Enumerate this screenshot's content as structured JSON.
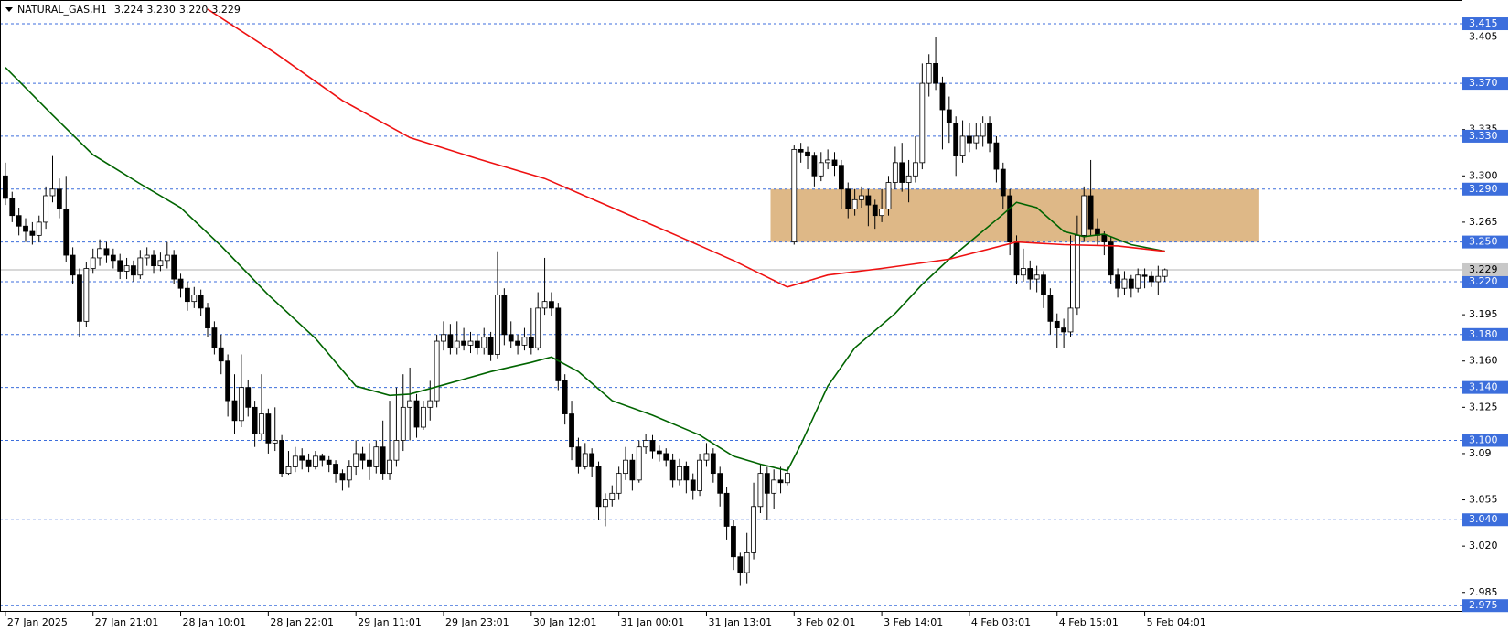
{
  "chart_data": {
    "type": "candlestick",
    "symbol": "NATURAL_GAS,H1",
    "header_values": [
      3.224,
      {
        "value": 3.23,
        "label": "3.230"
      },
      {
        "value": 3.22,
        "label": "3.220"
      },
      3.229
    ],
    "current_price": 3.229,
    "up_color": "#ffffff",
    "down_color": "#000000",
    "wick_color": "#000000",
    "open": [
      3.3,
      3.283,
      3.27,
      3.262,
      3.258,
      3.255,
      3.265,
      3.285,
      3.29,
      3.275,
      3.24,
      3.225,
      3.19,
      3.23,
      3.238,
      3.245,
      3.24,
      3.236,
      3.228,
      3.232,
      3.225,
      3.238,
      3.24,
      3.232,
      3.236,
      3.24,
      3.222,
      3.215,
      3.205,
      3.21,
      3.2,
      3.185,
      3.17,
      3.16,
      3.13,
      3.115,
      3.14,
      3.125,
      3.105,
      3.12,
      3.098,
      3.1,
      3.075,
      3.08,
      3.088,
      3.085,
      3.08,
      3.088,
      3.085,
      3.082,
      3.075,
      3.07,
      3.08,
      3.09,
      3.085,
      3.08,
      3.095,
      3.075,
      3.085,
      3.1,
      3.125,
      3.13,
      3.11,
      3.125,
      3.13,
      3.175,
      3.18,
      3.17,
      3.175,
      3.172,
      3.175,
      3.17,
      3.178,
      3.165,
      3.21,
      3.18,
      3.175,
      3.172,
      3.178,
      3.17,
      3.2,
      3.205,
      3.2,
      3.145,
      3.12,
      3.095,
      3.08,
      3.09,
      3.08,
      3.05,
      3.055,
      3.06,
      3.075,
      3.085,
      3.07,
      3.095,
      3.1,
      3.092,
      3.09,
      3.085,
      3.07,
      3.08,
      3.07,
      3.062,
      3.085,
      3.09,
      3.075,
      3.06,
      3.035,
      3.012,
      3.0,
      3.015,
      3.05,
      3.075,
      3.06,
      3.07,
      3.068,
      3.25,
      3.32,
      3.318,
      3.315,
      3.3,
      3.31,
      3.312,
      3.308,
      3.29,
      3.275,
      3.282,
      3.285,
      3.278,
      3.27,
      3.275,
      3.295,
      3.31,
      3.295,
      3.3,
      3.31,
      3.37,
      3.385,
      3.37,
      3.35,
      3.34,
      3.315,
      3.33,
      3.325,
      3.33,
      3.34,
      3.325,
      3.305,
      3.285,
      3.25,
      3.225,
      3.23,
      3.222,
      3.225,
      3.21,
      3.19,
      3.185,
      3.182,
      3.2,
      3.255,
      3.285,
      3.26,
      3.255,
      3.25,
      3.225,
      3.215,
      3.222,
      3.215,
      3.225,
      3.224,
      3.22,
      3.224
    ],
    "high": [
      3.31,
      3.288,
      3.276,
      3.268,
      3.265,
      3.27,
      3.292,
      3.315,
      3.298,
      3.3,
      3.246,
      3.23,
      3.235,
      3.245,
      3.252,
      3.25,
      3.245,
      3.241,
      3.238,
      3.236,
      3.244,
      3.246,
      3.244,
      3.242,
      3.25,
      3.244,
      3.226,
      3.22,
      3.216,
      3.214,
      3.204,
      3.19,
      3.18,
      3.165,
      3.15,
      3.165,
      3.146,
      3.13,
      3.15,
      3.124,
      3.125,
      3.104,
      3.092,
      3.095,
      3.094,
      3.09,
      3.092,
      3.09,
      3.088,
      3.085,
      3.078,
      3.085,
      3.1,
      3.095,
      3.098,
      3.1,
      3.115,
      3.13,
      3.14,
      3.15,
      3.155,
      3.135,
      3.13,
      3.145,
      3.18,
      3.19,
      3.188,
      3.19,
      3.185,
      3.182,
      3.18,
      3.185,
      3.182,
      3.243,
      3.215,
      3.19,
      3.18,
      3.185,
      3.2,
      3.212,
      3.238,
      3.212,
      3.204,
      3.15,
      3.13,
      3.102,
      3.098,
      3.094,
      3.084,
      3.06,
      3.066,
      3.08,
      3.095,
      3.09,
      3.1,
      3.105,
      3.104,
      3.096,
      3.094,
      3.09,
      3.086,
      3.084,
      3.075,
      3.09,
      3.098,
      3.094,
      3.08,
      3.065,
      3.04,
      3.015,
      3.03,
      3.068,
      3.082,
      3.08,
      3.078,
      3.08,
      3.08,
      3.323,
      3.325,
      3.322,
      3.318,
      3.318,
      3.32,
      3.318,
      3.312,
      3.295,
      3.29,
      3.292,
      3.29,
      3.282,
      3.29,
      3.3,
      3.322,
      3.325,
      3.312,
      3.33,
      3.385,
      3.392,
      3.405,
      3.375,
      3.36,
      3.345,
      3.342,
      3.34,
      3.34,
      3.345,
      3.345,
      3.33,
      3.31,
      3.29,
      3.255,
      3.245,
      3.236,
      3.232,
      3.228,
      3.215,
      3.196,
      3.192,
      3.255,
      3.27,
      3.292,
      3.312,
      3.268,
      3.258,
      3.254,
      3.23,
      3.228,
      3.225,
      3.23,
      3.23,
      3.228,
      3.232,
      3.23
    ],
    "low": [
      3.278,
      3.265,
      3.255,
      3.25,
      3.248,
      3.25,
      3.26,
      3.28,
      3.268,
      3.235,
      3.218,
      3.178,
      3.186,
      3.226,
      3.232,
      3.234,
      3.23,
      3.222,
      3.222,
      3.22,
      3.222,
      3.232,
      3.226,
      3.228,
      3.23,
      3.218,
      3.208,
      3.198,
      3.2,
      3.194,
      3.178,
      3.165,
      3.15,
      3.118,
      3.105,
      3.11,
      3.118,
      3.095,
      3.1,
      3.09,
      3.092,
      3.072,
      3.074,
      3.076,
      3.078,
      3.076,
      3.078,
      3.08,
      3.076,
      3.068,
      3.062,
      3.064,
      3.074,
      3.078,
      3.07,
      3.075,
      3.07,
      3.07,
      3.08,
      3.092,
      3.1,
      3.102,
      3.108,
      3.115,
      3.125,
      3.168,
      3.165,
      3.165,
      3.168,
      3.166,
      3.165,
      3.165,
      3.16,
      3.162,
      3.172,
      3.17,
      3.165,
      3.168,
      3.165,
      3.168,
      3.195,
      3.194,
      3.138,
      3.112,
      3.085,
      3.075,
      3.078,
      3.072,
      3.04,
      3.035,
      3.05,
      3.055,
      3.07,
      3.062,
      3.068,
      3.09,
      3.086,
      3.084,
      3.08,
      3.064,
      3.066,
      3.06,
      3.055,
      3.058,
      3.08,
      3.068,
      3.05,
      3.025,
      3.002,
      2.99,
      2.992,
      3.01,
      3.045,
      3.04,
      3.048,
      3.06,
      3.066,
      3.248,
      3.31,
      3.305,
      3.292,
      3.296,
      3.305,
      3.3,
      3.275,
      3.268,
      3.27,
      3.276,
      3.262,
      3.26,
      3.265,
      3.27,
      3.29,
      3.288,
      3.28,
      3.295,
      3.305,
      3.36,
      3.365,
      3.32,
      3.325,
      3.3,
      3.31,
      3.318,
      3.32,
      3.322,
      3.318,
      3.295,
      3.275,
      3.24,
      3.218,
      3.22,
      3.214,
      3.212,
      3.2,
      3.18,
      3.17,
      3.17,
      3.178,
      3.195,
      3.25,
      3.255,
      3.248,
      3.24,
      3.218,
      3.208,
      3.21,
      3.208,
      3.212,
      3.215,
      3.216,
      3.21,
      3.22
    ],
    "close": [
      3.283,
      3.27,
      3.262,
      3.258,
      3.255,
      3.265,
      3.285,
      3.29,
      3.275,
      3.24,
      3.225,
      3.19,
      3.23,
      3.238,
      3.245,
      3.24,
      3.236,
      3.228,
      3.232,
      3.225,
      3.238,
      3.24,
      3.232,
      3.236,
      3.24,
      3.222,
      3.215,
      3.205,
      3.21,
      3.2,
      3.185,
      3.17,
      3.16,
      3.13,
      3.115,
      3.14,
      3.125,
      3.105,
      3.12,
      3.098,
      3.1,
      3.075,
      3.08,
      3.088,
      3.085,
      3.08,
      3.088,
      3.085,
      3.082,
      3.075,
      3.07,
      3.08,
      3.09,
      3.085,
      3.08,
      3.095,
      3.075,
      3.085,
      3.1,
      3.125,
      3.13,
      3.11,
      3.125,
      3.13,
      3.175,
      3.18,
      3.17,
      3.175,
      3.172,
      3.175,
      3.17,
      3.178,
      3.165,
      3.21,
      3.18,
      3.175,
      3.172,
      3.178,
      3.17,
      3.2,
      3.205,
      3.2,
      3.145,
      3.12,
      3.095,
      3.08,
      3.09,
      3.08,
      3.05,
      3.055,
      3.06,
      3.075,
      3.085,
      3.07,
      3.095,
      3.1,
      3.092,
      3.09,
      3.085,
      3.07,
      3.08,
      3.07,
      3.062,
      3.085,
      3.09,
      3.075,
      3.06,
      3.035,
      3.012,
      3.0,
      3.015,
      3.05,
      3.075,
      3.06,
      3.07,
      3.068,
      3.075,
      3.32,
      3.318,
      3.315,
      3.3,
      3.31,
      3.312,
      3.308,
      3.29,
      3.275,
      3.282,
      3.285,
      3.278,
      3.27,
      3.275,
      3.295,
      3.31,
      3.295,
      3.3,
      3.31,
      3.37,
      3.385,
      3.37,
      3.35,
      3.34,
      3.315,
      3.33,
      3.325,
      3.33,
      3.34,
      3.325,
      3.305,
      3.285,
      3.25,
      3.225,
      3.23,
      3.222,
      3.225,
      3.21,
      3.19,
      3.185,
      3.182,
      3.2,
      3.255,
      3.285,
      3.26,
      3.255,
      3.25,
      3.225,
      3.215,
      3.222,
      3.215,
      3.225,
      3.224,
      3.22,
      3.224,
      3.229
    ],
    "lines": [
      {
        "color": "#006400",
        "x": [
          0,
          7,
          13,
          20,
          26,
          32,
          39,
          46,
          52,
          57,
          60,
          65,
          72,
          78,
          81,
          85,
          90,
          96,
          103,
          108,
          112,
          116,
          118,
          122,
          126,
          132,
          136,
          140,
          144,
          148,
          150,
          153,
          157,
          160,
          163,
          167,
          172
        ],
        "values": [
          3.382,
          3.346,
          3.316,
          3.294,
          3.276,
          3.247,
          3.21,
          3.177,
          3.141,
          3.134,
          3.135,
          3.142,
          3.152,
          3.159,
          3.163,
          3.152,
          3.13,
          3.119,
          3.104,
          3.088,
          3.082,
          3.077,
          3.097,
          3.141,
          3.17,
          3.196,
          3.218,
          3.237,
          3.254,
          3.271,
          3.28,
          3.276,
          3.258,
          3.254,
          3.256,
          3.248,
          3.243
        ]
      },
      {
        "color": "#ee1111",
        "x": [
          30,
          40,
          50,
          60,
          70,
          80,
          90,
          100,
          108,
          116,
          122,
          130,
          140,
          150,
          157,
          165,
          172
        ],
        "values": [
          3.426,
          3.393,
          3.357,
          3.329,
          3.313,
          3.298,
          3.276,
          3.254,
          3.236,
          3.216,
          3.225,
          3.23,
          3.237,
          3.25,
          3.248,
          3.247,
          3.243
        ]
      }
    ],
    "zone": {
      "low": 3.25,
      "high": 3.29,
      "start": 113.5,
      "end": 186,
      "color": "#deb887"
    },
    "levels": [
      3.415,
      {
        "value": 3.37,
        "label": "3.370"
      },
      {
        "value": 3.33,
        "label": "3.330"
      },
      {
        "value": 3.29,
        "label": "3.290"
      },
      {
        "value": 3.25,
        "label": "3.250"
      },
      {
        "value": 3.22,
        "label": "3.220"
      },
      {
        "value": 3.18,
        "label": "3.180"
      },
      {
        "value": 3.14,
        "label": "3.140"
      },
      {
        "value": 3.1,
        "label": "3.100"
      },
      {
        "value": 3.04,
        "label": "3.040"
      },
      2.975
    ],
    "level_color": "#3c6edc",
    "ylim": [
      2.971,
      3.433
    ],
    "yticks": [
      3.405,
      3.335,
      {
        "value": 3.3,
        "label": "3.300"
      },
      3.265,
      3.195,
      {
        "value": 3.16,
        "label": "3.160"
      },
      3.125,
      3.09,
      3.055,
      {
        "value": 3.02,
        "label": "3.020"
      },
      2.985
    ],
    "xlim": [
      -0.8,
      216
    ],
    "xticks": [
      {
        "value": 0,
        "label": "27 Jan 2025"
      },
      {
        "value": 13,
        "label": "27 Jan 21:01"
      },
      {
        "value": 26,
        "label": "28 Jan 10:01"
      },
      {
        "value": 39,
        "label": "28 Jan 22:01"
      },
      {
        "value": 52,
        "label": "29 Jan 11:01"
      },
      {
        "value": 65,
        "label": "29 Jan 23:01"
      },
      {
        "value": 78,
        "label": "30 Jan 12:01"
      },
      {
        "value": 91,
        "label": "31 Jan 00:01"
      },
      {
        "value": 104,
        "label": "31 Jan 13:01"
      },
      {
        "value": 117,
        "label": "3 Feb 02:01"
      },
      {
        "value": 130,
        "label": "3 Feb 14:01"
      },
      {
        "value": 143,
        "label": "4 Feb 03:01"
      },
      {
        "value": 156,
        "label": "4 Feb 15:01"
      },
      {
        "value": 169,
        "label": "5 Feb 04:01"
      }
    ]
  }
}
